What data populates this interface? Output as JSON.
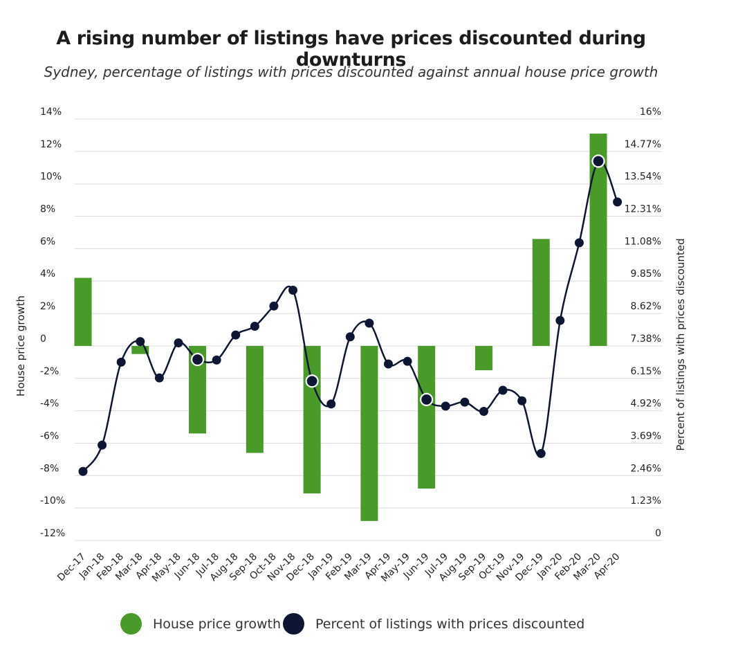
{
  "chart_data": {
    "type": "bar+line",
    "title": "A rising number of listings have prices discounted during downturns",
    "subtitle": "Sydney, percentage of listings with prices discounted against annual house price growth",
    "categories": [
      "Dec-17",
      "Jan-18",
      "Feb-18",
      "Mar-18",
      "Apr-18",
      "May-18",
      "Jun-18",
      "Jul-18",
      "Aug-18",
      "Sep-18",
      "Oct-18",
      "Nov-18",
      "Dec-18",
      "Jan-19",
      "Feb-19",
      "Mar-19",
      "Apr-19",
      "May-19",
      "Jun-19",
      "Jul-19",
      "Aug-19",
      "Sep-19",
      "Oct-19",
      "Nov-19",
      "Dec-19",
      "Jan-20",
      "Feb-20",
      "Mar-20",
      "Apr-20"
    ],
    "series": [
      {
        "name": "House price growth",
        "type": "bar",
        "axis": "left",
        "color": "#4a9a2a",
        "values": [
          4.2,
          null,
          null,
          -0.5,
          null,
          null,
          -5.4,
          null,
          null,
          -6.6,
          null,
          null,
          -9.1,
          null,
          null,
          -10.8,
          null,
          null,
          -8.8,
          null,
          null,
          -1.5,
          null,
          null,
          6.6,
          null,
          null,
          13.1,
          null
        ]
      },
      {
        "name": "Percent of listings with prices discounted",
        "type": "line",
        "axis": "right",
        "color": "#0d1633",
        "values": [
          2.62,
          3.62,
          6.77,
          7.55,
          6.17,
          7.5,
          6.87,
          6.85,
          7.8,
          8.13,
          8.9,
          9.5,
          6.05,
          5.18,
          7.73,
          8.25,
          6.7,
          6.8,
          5.35,
          5.1,
          5.25,
          4.9,
          5.7,
          5.3,
          3.3,
          8.35,
          11.3,
          14.4,
          12.85
        ],
        "highlighted": [
          false,
          false,
          false,
          false,
          false,
          false,
          true,
          false,
          false,
          false,
          false,
          false,
          true,
          false,
          false,
          false,
          false,
          false,
          true,
          false,
          false,
          false,
          false,
          false,
          false,
          false,
          false,
          true,
          false
        ]
      }
    ],
    "left_axis": {
      "label": "House price growth",
      "ylim": [
        -12,
        14
      ],
      "ticks": [
        14,
        12,
        10,
        8,
        6,
        4,
        2,
        0,
        -2,
        -4,
        -6,
        -8,
        -10,
        -12
      ],
      "tick_labels": [
        "14%",
        "12%",
        "10%",
        "8%",
        "6%",
        "4%",
        "2%",
        "0",
        "-2%",
        "-4%",
        "-6%",
        "-8%",
        "-10%",
        "-12%"
      ]
    },
    "right_axis": {
      "label": "Percent of listings with prices discounted",
      "ylim": [
        0,
        16
      ],
      "ticks": [
        16,
        14.77,
        13.54,
        12.31,
        11.08,
        9.85,
        8.62,
        7.38,
        6.15,
        4.92,
        3.69,
        2.46,
        1.23,
        0
      ],
      "tick_labels": [
        "16%",
        "14.77%",
        "13.54%",
        "12.31%",
        "11.08%",
        "9.85%",
        "8.62%",
        "7.38%",
        "6.15%",
        "4.92%",
        "3.69%",
        "2.46%",
        "1.23%",
        "0"
      ]
    },
    "grid": true,
    "legend_position": "bottom"
  }
}
